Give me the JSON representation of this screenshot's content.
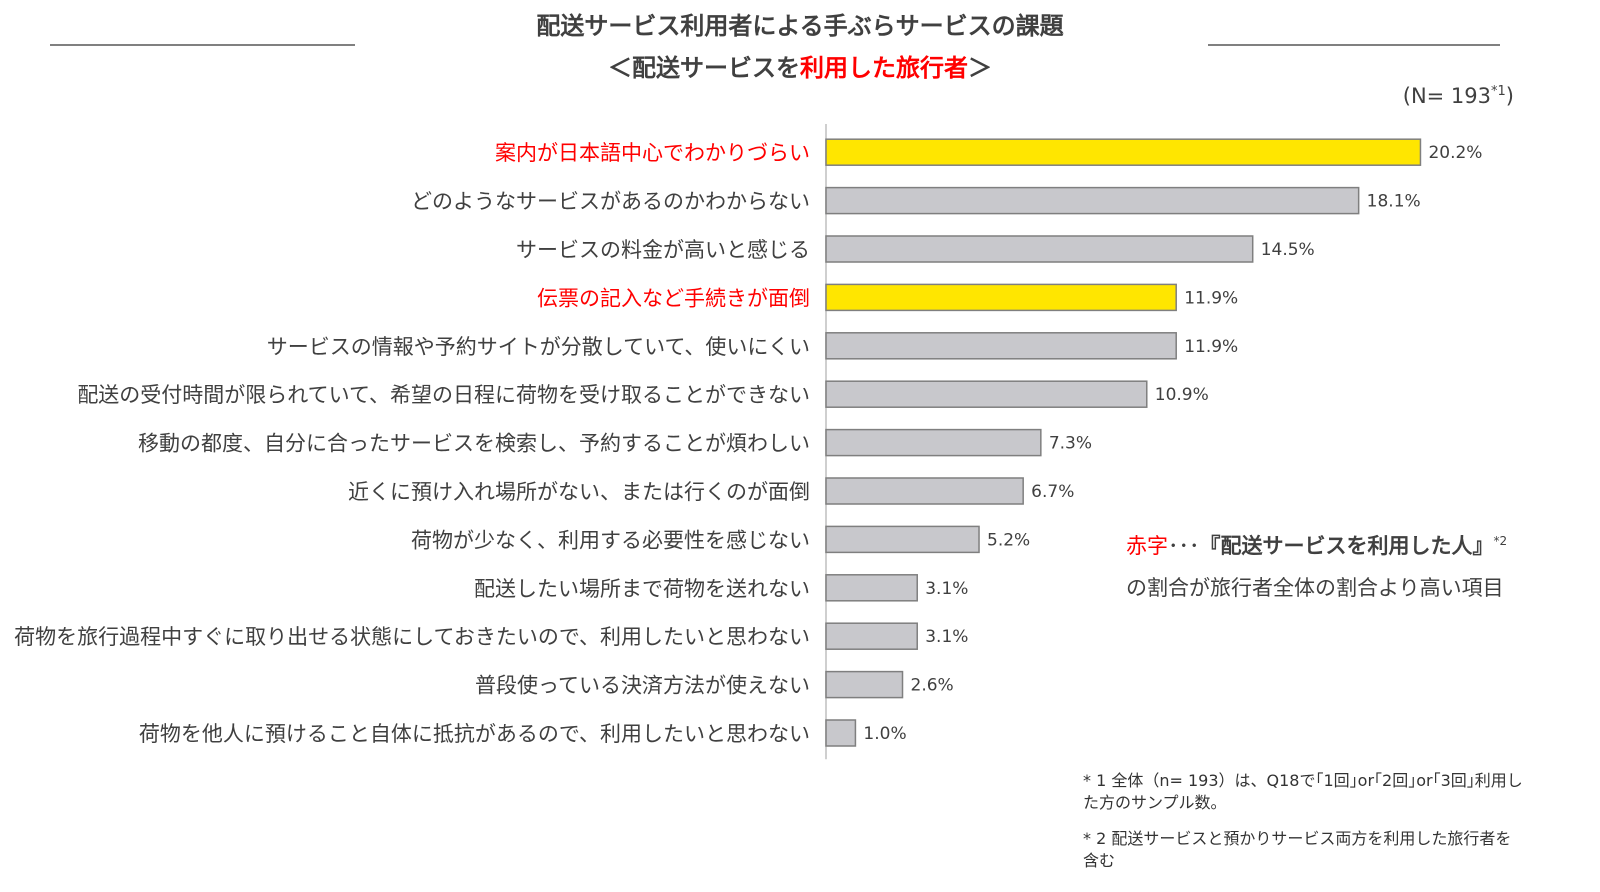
{
  "title": {
    "line1": "配送サービス利用者による手ぶらサービスの課題",
    "line2_pre": "＜配送サービスを",
    "line2_highlight": "利用した旅行者",
    "line2_post": "＞"
  },
  "sample_size": {
    "text": "(N= 193",
    "sup": "*1",
    "close": ")"
  },
  "chart_data": {
    "type": "bar",
    "orientation": "horizontal",
    "categories": [
      "案内が日本語中心でわかりづらい",
      "どのようなサービスがあるのかわからない",
      "サービスの料金が高いと感じる",
      "伝票の記入など手続きが面倒",
      "サービスの情報や予約サイトが分散していて、使いにくい",
      "配送の受付時間が限られていて、希望の日程に荷物を受け取ることができない",
      "移動の都度、自分に合ったサービスを検索し、予約することが煩わしい",
      "近くに預け入れ場所がない、または行くのが面倒",
      "荷物が少なく、利用する必要性を感じない",
      "配送したい場所まで荷物を送れない",
      "荷物を旅行過程中すぐに取り出せる状態にしておきたいので、利用したいと思わない",
      "普段使っている決済方法が使えない",
      "荷物を他人に預けること自体に抵抗があるので、利用したいと思わない"
    ],
    "values": [
      20.2,
      18.1,
      14.5,
      11.9,
      11.9,
      10.9,
      7.3,
      6.7,
      5.2,
      3.1,
      3.1,
      2.6,
      1.0
    ],
    "value_labels": [
      "20.2%",
      "18.1%",
      "14.5%",
      "11.9%",
      "11.9%",
      "10.9%",
      "7.3%",
      "6.7%",
      "5.2%",
      "3.1%",
      "3.1%",
      "2.6%",
      "1.0%"
    ],
    "highlighted": [
      true,
      false,
      false,
      true,
      false,
      false,
      false,
      false,
      false,
      false,
      false,
      false,
      false
    ],
    "colors": {
      "highlight_bar": "#ffe600",
      "normal_bar": "#c8c8cc",
      "bar_border": "#7f7f7f",
      "highlight_label": "#ff0000",
      "normal_label": "#404040"
    },
    "xlim": [
      0,
      21
    ],
    "grid": false,
    "axes_visible": false
  },
  "legend_note": {
    "red_label": "赤字",
    "dots": "･･･",
    "bold_text": "『配送サービスを利用した人』",
    "sup": "*2",
    "line2": "の割合が旅行者全体の割合より高い項目"
  },
  "footnotes": {
    "note1": "* 1  全体（n= 193）は、Q18で｢1回｣or｢2回｣or｢3回｣利用した方のサンプル数。",
    "note2": "* 2   配送サービスと預かりサービス両方を利用した旅行者を含む"
  }
}
